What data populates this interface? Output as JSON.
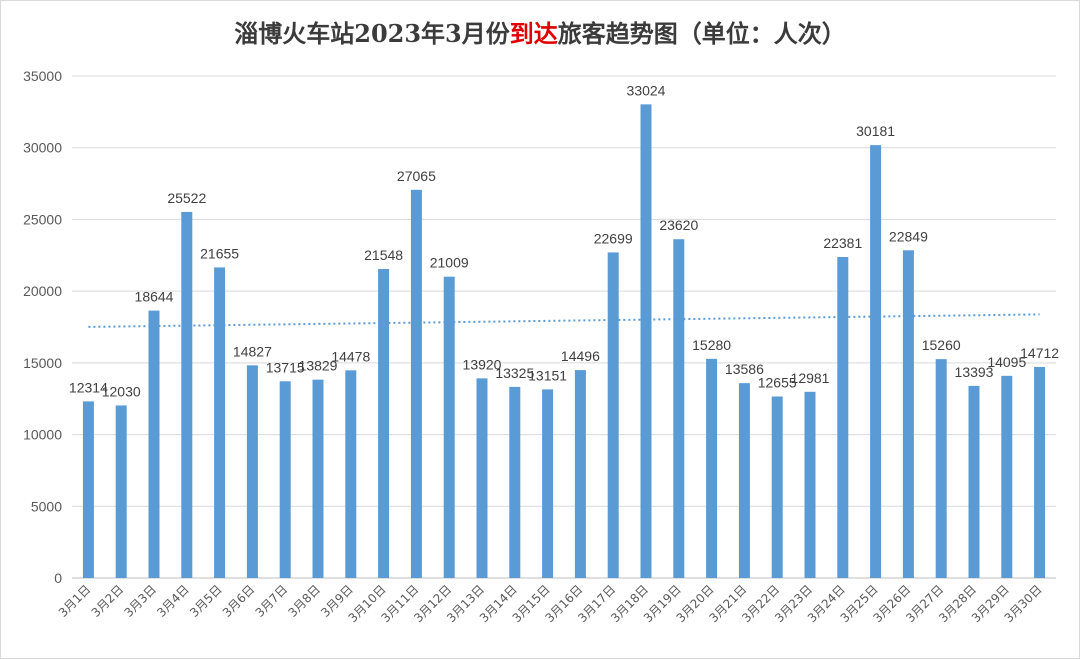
{
  "title": {
    "prefix": "淄博火车站2023年3月份",
    "highlight": "到达",
    "suffix": "旅客趋势图（单位：人次）"
  },
  "colors": {
    "bar": "#5b9bd5",
    "trendline": "#5b9bd5",
    "grid": "#d9d9d9",
    "title_highlight": "#e00000"
  },
  "chart_data": {
    "type": "bar",
    "title": "淄博火车站2023年3月份到达旅客趋势图（单位：人次）",
    "xlabel": "",
    "ylabel": "",
    "ylim": [
      0,
      35000
    ],
    "yticks": [
      0,
      5000,
      10000,
      15000,
      20000,
      25000,
      30000,
      35000
    ],
    "grid": "horizontal",
    "legend": "none",
    "trendline": "linear, dotted",
    "categories": [
      "3月1日",
      "3月2日",
      "3月3日",
      "3月4日",
      "3月5日",
      "3月6日",
      "3月7日",
      "3月8日",
      "3月9日",
      "3月10日",
      "3月11日",
      "3月12日",
      "3月13日",
      "3月14日",
      "3月15日",
      "3月16日",
      "3月17日",
      "3月18日",
      "3月19日",
      "3月20日",
      "3月21日",
      "3月22日",
      "3月23日",
      "3月24日",
      "3月25日",
      "3月26日",
      "3月27日",
      "3月28日",
      "3月29日",
      "3月30日"
    ],
    "values": [
      12314,
      12030,
      18644,
      25522,
      21655,
      14827,
      13715,
      13829,
      14478,
      21548,
      27065,
      21009,
      13920,
      13325,
      13151,
      14496,
      22699,
      33024,
      23620,
      15280,
      13586,
      12655,
      12981,
      22381,
      30181,
      22849,
      15260,
      13393,
      14095,
      14712
    ]
  }
}
